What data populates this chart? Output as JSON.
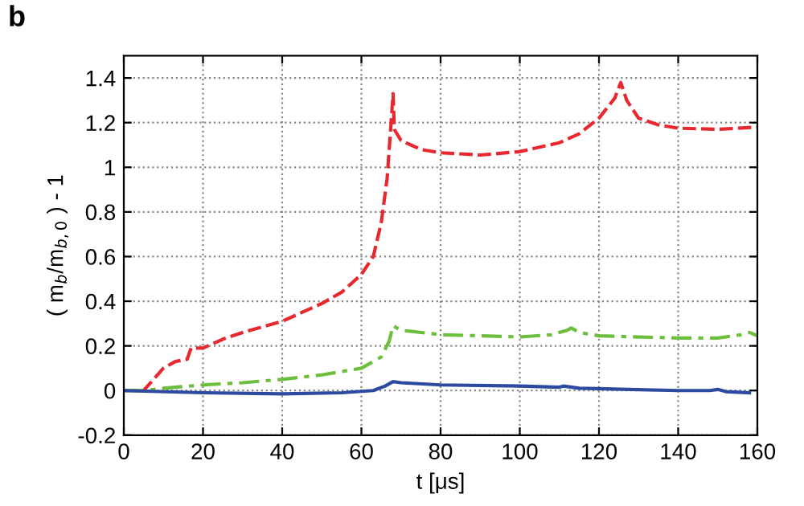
{
  "chart_data": {
    "type": "line",
    "xlabel": "t [μs]",
    "ylabel": "( m$_{b}$/m$_{b,0}$ ) - 1",
    "annotations": [
      "b"
    ],
    "xlim": [
      0,
      160
    ],
    "ylim": [
      -0.2,
      1.5
    ],
    "xticks": [
      0,
      20,
      40,
      60,
      80,
      100,
      120,
      140,
      160
    ],
    "yticks": [
      -0.2,
      0,
      0.2,
      0.4,
      0.6,
      0.8,
      1,
      1.2,
      1.4
    ],
    "grid": true,
    "legend": false,
    "series": [
      {
        "color": "#e8282e",
        "line_style": "dashed",
        "x": [
          0,
          5,
          10,
          13,
          16,
          17,
          20,
          25,
          30,
          40,
          50,
          55,
          60,
          63,
          65,
          66.5,
          67.5,
          68,
          68.3,
          70,
          75,
          80,
          90,
          100,
          110,
          115,
          120,
          124,
          125.5,
          127,
          130,
          135,
          140,
          150,
          160
        ],
        "values": [
          0,
          0,
          0.1,
          0.13,
          0.14,
          0.19,
          0.19,
          0.23,
          0.26,
          0.31,
          0.39,
          0.44,
          0.52,
          0.6,
          0.75,
          0.95,
          1.2,
          1.33,
          1.17,
          1.12,
          1.08,
          1.065,
          1.055,
          1.07,
          1.11,
          1.15,
          1.22,
          1.31,
          1.38,
          1.3,
          1.22,
          1.19,
          1.175,
          1.17,
          1.18
        ]
      },
      {
        "color": "#6cbf3c",
        "line_style": "dashdot",
        "x": [
          0,
          5,
          10,
          20,
          30,
          40,
          50,
          60,
          65,
          67,
          68,
          70,
          80,
          100,
          108,
          112,
          113,
          115,
          120,
          140,
          150,
          156,
          158,
          160
        ],
        "values": [
          0,
          0,
          0.01,
          0.025,
          0.035,
          0.05,
          0.07,
          0.1,
          0.15,
          0.22,
          0.29,
          0.27,
          0.25,
          0.24,
          0.25,
          0.27,
          0.28,
          0.26,
          0.245,
          0.235,
          0.235,
          0.25,
          0.26,
          0.245
        ]
      },
      {
        "color": "#2c4aa0",
        "line_style": "solid",
        "x": [
          0,
          20,
          40,
          55,
          63,
          66,
          68,
          70,
          80,
          100,
          110,
          111,
          115,
          140,
          148,
          150,
          152,
          158
        ],
        "values": [
          0,
          -0.01,
          -0.015,
          -0.01,
          0,
          0.02,
          0.04,
          0.035,
          0.025,
          0.02,
          0.015,
          0.02,
          0.01,
          0,
          0,
          0.005,
          -0.005,
          -0.01
        ]
      }
    ]
  }
}
